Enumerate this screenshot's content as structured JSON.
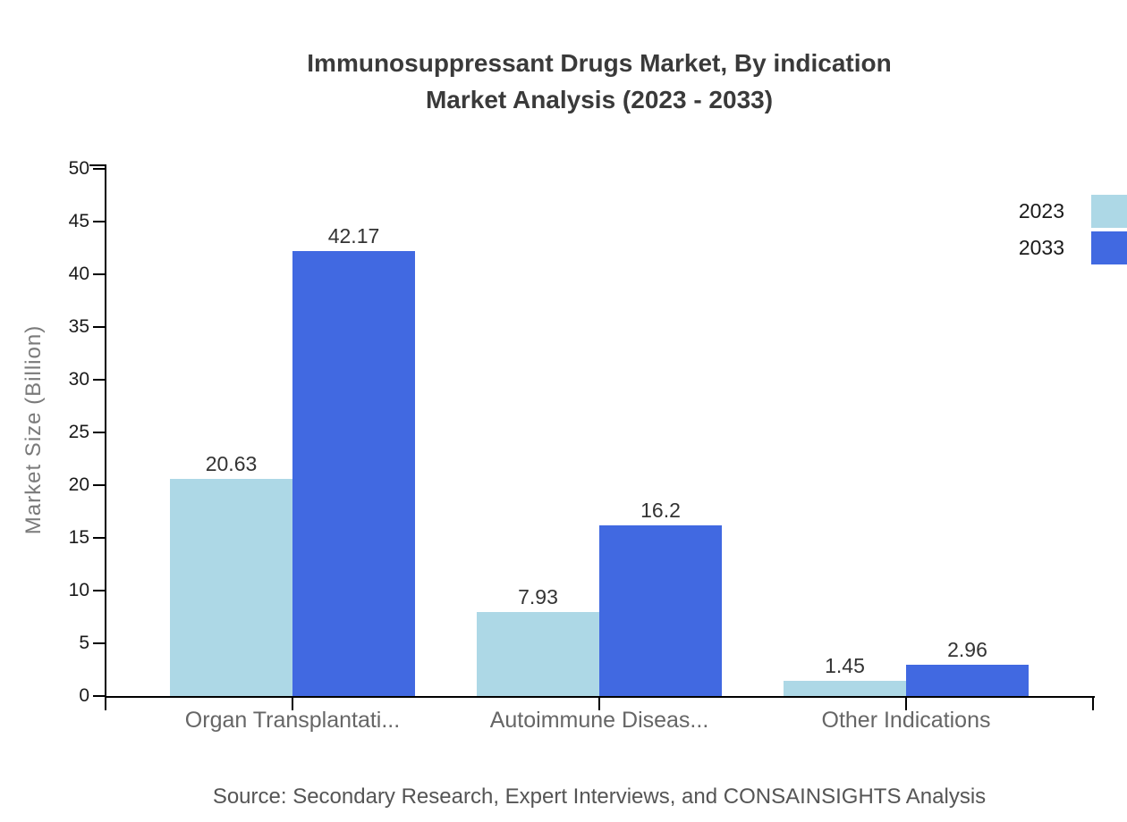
{
  "chart_data": {
    "type": "bar",
    "title": "Immunosuppressant Drugs Market, By indication Market Analysis (2023 - 2033)",
    "title_lines": [
      "Immunosuppressant Drugs Market, By indication",
      "Market Analysis (2023 - 2033)"
    ],
    "ylabel": "Market Size (Billion)",
    "xlabel": "",
    "ylim": [
      0,
      50
    ],
    "yticks": [
      0,
      5,
      10,
      15,
      20,
      25,
      30,
      35,
      40,
      45,
      50
    ],
    "grid": false,
    "legend_position": "top-right",
    "categories": [
      "Organ Transplantati...",
      "Autoimmune Diseas...",
      "Other Indications"
    ],
    "series": [
      {
        "name": "2023",
        "color": "#add8e6",
        "values": [
          20.63,
          7.93,
          1.45
        ],
        "value_labels": [
          "20.63",
          "7.93",
          "1.45"
        ]
      },
      {
        "name": "2033",
        "color": "#4169e1",
        "values": [
          42.17,
          16.2,
          2.96
        ],
        "value_labels": [
          "42.17",
          "16.2",
          "2.96"
        ]
      }
    ],
    "source_note": "Source: Secondary Research, Expert Interviews, and CONSAINSIGHTS Analysis",
    "palette": {
      "axis": "#000000",
      "title_text": "#3a3a3a",
      "category_text": "#666666",
      "ylabel_text": "#7a7a7a"
    }
  }
}
